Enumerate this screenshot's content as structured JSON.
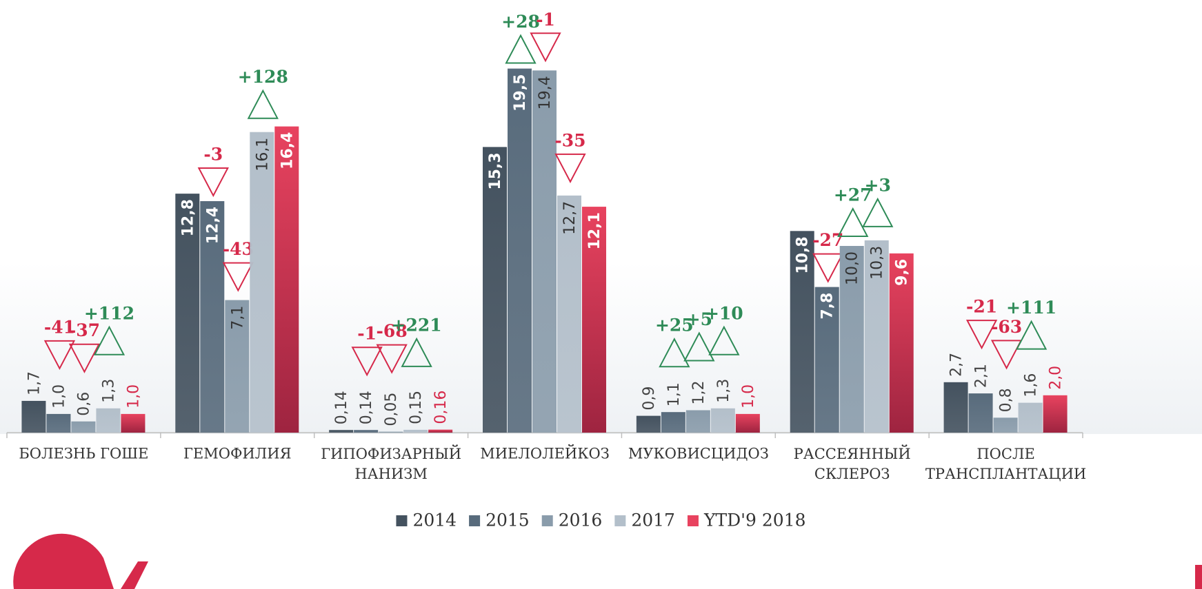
{
  "chart_data": {
    "type": "bar",
    "categories": [
      "БОЛЕЗНЬ ГОШЕ",
      "ГЕМОФИЛИЯ",
      "ГИПОФИЗАРНЫЙ НАНИЗМ",
      "МИЕЛОЛЕЙКОЗ",
      "МУКОВИСЦИДОЗ",
      "РАССЕЯННЫЙ СКЛЕРОЗ",
      "ПОСЛЕ ТРАНСПЛАНТАЦИИ"
    ],
    "ylim": [
      0,
      20
    ],
    "legend": "bottom",
    "series": [
      {
        "name": "2014",
        "color": "#44525f",
        "values": [
          1.7,
          12.8,
          0.14,
          15.3,
          0.9,
          10.8,
          2.7
        ],
        "value_labels": [
          "1,7",
          "12,8",
          "0,14",
          "15,3",
          "0,9",
          "10,8",
          "2,7"
        ]
      },
      {
        "name": "2015",
        "color": "#586b7c",
        "values": [
          1.0,
          12.4,
          0.14,
          19.5,
          1.1,
          7.8,
          2.1
        ],
        "value_labels": [
          "1,0",
          "12,4",
          "0,14",
          "19,5",
          "1,1",
          "7,8",
          "2,1"
        ],
        "changes": [
          -41,
          -3,
          -1,
          28,
          25,
          -27,
          -21
        ],
        "change_labels": [
          "-41",
          "-3",
          "-1",
          "+28",
          "+25",
          "-27",
          "-21"
        ]
      },
      {
        "name": "2016",
        "color": "#8a9cab",
        "values": [
          0.6,
          7.1,
          0.05,
          19.4,
          1.2,
          10.0,
          0.8
        ],
        "value_labels": [
          "0,6",
          "7,1",
          "0,05",
          "19,4",
          "1,2",
          "10,0",
          "0,8"
        ],
        "changes": [
          -37,
          -43,
          -68,
          -1,
          5,
          27,
          -63
        ],
        "change_labels": [
          "-37",
          "-43",
          "-68",
          "-1",
          "+5",
          "+27",
          "-63"
        ]
      },
      {
        "name": "2017",
        "color": "#b3bfca",
        "values": [
          1.3,
          16.1,
          0.15,
          12.7,
          1.3,
          10.3,
          1.6
        ],
        "value_labels": [
          "1,3",
          "16,1",
          "0,15",
          "12,7",
          "1,3",
          "10,3",
          "1,6"
        ],
        "changes": [
          112,
          128,
          221,
          -35,
          10,
          3,
          111
        ],
        "change_labels": [
          "+112",
          "+128",
          "+221",
          "-35",
          "+10",
          "+3",
          "+111"
        ]
      },
      {
        "name": "YTD'9 2018",
        "color": "#e8435f",
        "values": [
          1.0,
          16.4,
          0.16,
          12.1,
          1.0,
          9.6,
          2.0
        ],
        "value_labels": [
          "1,0",
          "16,4",
          "0,16",
          "12,1",
          "1,0",
          "9,6",
          "2,0"
        ]
      }
    ]
  }
}
